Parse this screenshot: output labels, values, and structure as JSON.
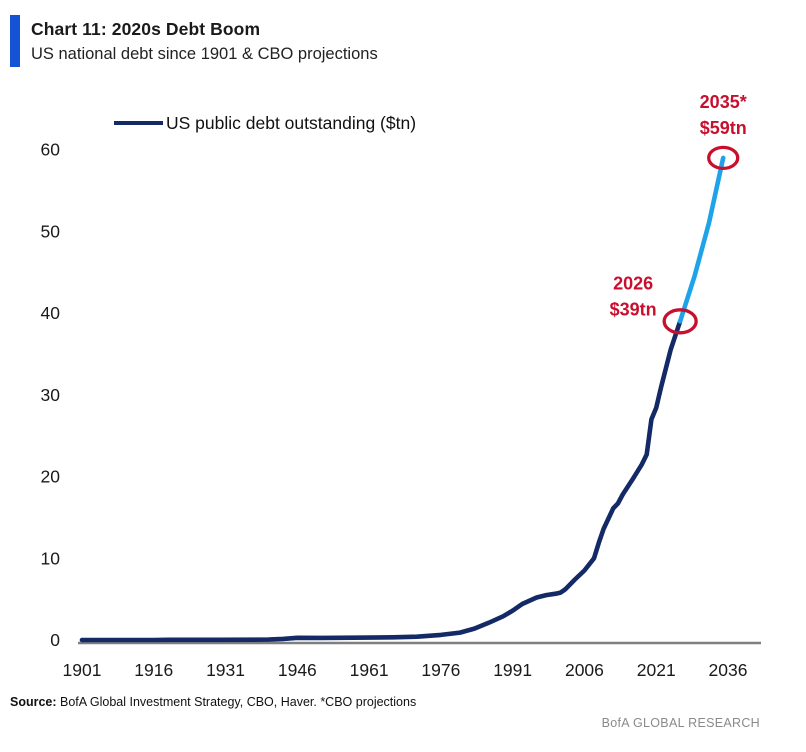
{
  "header": {
    "title": "Chart 11: 2020s Debt Boom",
    "subtitle": "US national debt since 1901 & CBO projections",
    "accent_color": "#1553d6"
  },
  "legend": {
    "label": "US public debt outstanding ($tn)"
  },
  "chart_data": {
    "type": "line",
    "title": "Chart 11: 2020s Debt Boom",
    "subtitle": "US national debt since 1901 & CBO projections",
    "ylabel": "US public debt outstanding ($tn)",
    "xlabel": "",
    "x_ticks": [
      1901,
      1916,
      1931,
      1946,
      1961,
      1976,
      1991,
      2006,
      2021,
      2036
    ],
    "y_ticks": [
      0,
      10,
      20,
      30,
      40,
      50,
      60
    ],
    "xlim": [
      1901,
      2043
    ],
    "ylim": [
      0,
      62
    ],
    "grid": false,
    "legend_position": "top-left",
    "axis_color": "#7f7f7f",
    "series": [
      {
        "name": "US public debt outstanding ($tn)",
        "style": "historical",
        "color": "#132a66",
        "points": [
          [
            1901,
            0.0
          ],
          [
            1916,
            0.0
          ],
          [
            1919,
            0.03
          ],
          [
            1930,
            0.02
          ],
          [
            1940,
            0.05
          ],
          [
            1943,
            0.14
          ],
          [
            1946,
            0.27
          ],
          [
            1951,
            0.26
          ],
          [
            1961,
            0.29
          ],
          [
            1966,
            0.33
          ],
          [
            1971,
            0.4
          ],
          [
            1976,
            0.62
          ],
          [
            1980,
            0.91
          ],
          [
            1983,
            1.4
          ],
          [
            1986,
            2.1
          ],
          [
            1989,
            2.9
          ],
          [
            1991,
            3.6
          ],
          [
            1993,
            4.4
          ],
          [
            1996,
            5.2
          ],
          [
            1998,
            5.5
          ],
          [
            2000,
            5.67
          ],
          [
            2001,
            5.8
          ],
          [
            2002,
            6.2
          ],
          [
            2004,
            7.4
          ],
          [
            2006,
            8.5
          ],
          [
            2008,
            10.0
          ],
          [
            2009,
            11.9
          ],
          [
            2010,
            13.6
          ],
          [
            2012,
            16.1
          ],
          [
            2013,
            16.7
          ],
          [
            2014,
            17.8
          ],
          [
            2016,
            19.6
          ],
          [
            2018,
            21.5
          ],
          [
            2019,
            22.7
          ],
          [
            2020,
            27.0
          ],
          [
            2021,
            28.4
          ],
          [
            2022,
            30.9
          ],
          [
            2023,
            33.2
          ],
          [
            2024,
            35.5
          ],
          [
            2026,
            39.0
          ]
        ]
      },
      {
        "name": "CBO projection",
        "style": "projection",
        "color": "#1fa3e8",
        "points": [
          [
            2026,
            39.0
          ],
          [
            2029,
            44.5
          ],
          [
            2032,
            51.0
          ],
          [
            2035,
            59.0
          ]
        ]
      }
    ],
    "annotations": [
      {
        "year_label": "2026",
        "value_label": "$39tn",
        "year": 2026,
        "value": 39,
        "color": "#c8102e"
      },
      {
        "year_label": "2035*",
        "value_label": "$59tn",
        "year": 2035,
        "value": 59,
        "color": "#c8102e"
      }
    ]
  },
  "footer": {
    "source_label": "Source:",
    "source_text": " BofA Global Investment Strategy, CBO, Haver. *CBO projections",
    "brand": "BofA GLOBAL RESEARCH"
  }
}
